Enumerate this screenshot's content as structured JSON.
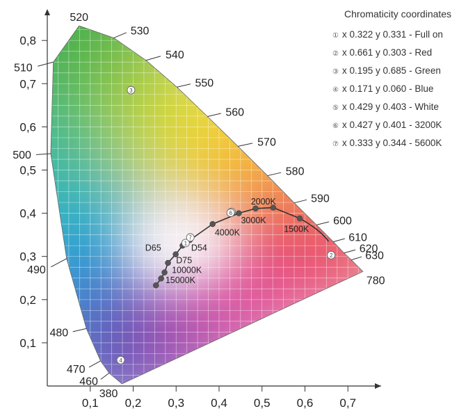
{
  "chart_data": {
    "type": "scatter",
    "title": "",
    "xlabel": "",
    "ylabel": "",
    "xlim": [
      0,
      0.77
    ],
    "ylim": [
      0,
      0.89
    ],
    "x_ticks": [
      {
        "value": 0.1,
        "label": "0,1"
      },
      {
        "value": 0.2,
        "label": "0,2"
      },
      {
        "value": 0.3,
        "label": "0,3"
      },
      {
        "value": 0.4,
        "label": "0,4"
      },
      {
        "value": 0.5,
        "label": "0,5"
      },
      {
        "value": 0.6,
        "label": "0,6"
      },
      {
        "value": 0.7,
        "label": "0,7"
      }
    ],
    "y_ticks": [
      {
        "value": 0.1,
        "label": "0,1"
      },
      {
        "value": 0.2,
        "label": "0,2"
      },
      {
        "value": 0.3,
        "label": "0,3"
      },
      {
        "value": 0.4,
        "label": "0,4"
      },
      {
        "value": 0.5,
        "label": "0,5"
      },
      {
        "value": 0.6,
        "label": "0,6"
      },
      {
        "value": 0.7,
        "label": "0,7"
      },
      {
        "value": 0.8,
        "label": "0,8"
      }
    ],
    "spectral_locus": [
      {
        "nm": "380",
        "x": 0.174,
        "y": 0.005
      },
      {
        "nm": "460",
        "x": 0.144,
        "y": 0.03
      },
      {
        "nm": "470",
        "x": 0.124,
        "y": 0.058
      },
      {
        "nm": "480",
        "x": 0.091,
        "y": 0.133
      },
      {
        "nm": "490",
        "x": 0.045,
        "y": 0.295
      },
      {
        "nm": "500",
        "x": 0.008,
        "y": 0.538
      },
      {
        "nm": "510",
        "x": 0.014,
        "y": 0.75
      },
      {
        "nm": "520",
        "x": 0.074,
        "y": 0.834
      },
      {
        "nm": "530",
        "x": 0.155,
        "y": 0.806
      },
      {
        "nm": "540",
        "x": 0.23,
        "y": 0.754
      },
      {
        "nm": "550",
        "x": 0.302,
        "y": 0.692
      },
      {
        "nm": "560",
        "x": 0.373,
        "y": 0.624
      },
      {
        "nm": "570",
        "x": 0.444,
        "y": 0.555
      },
      {
        "nm": "580",
        "x": 0.513,
        "y": 0.487
      },
      {
        "nm": "590",
        "x": 0.575,
        "y": 0.424
      },
      {
        "nm": "600",
        "x": 0.627,
        "y": 0.373
      },
      {
        "nm": "610",
        "x": 0.666,
        "y": 0.334
      },
      {
        "nm": "620",
        "x": 0.691,
        "y": 0.308
      },
      {
        "nm": "630",
        "x": 0.708,
        "y": 0.292
      },
      {
        "nm": "780",
        "x": 0.735,
        "y": 0.265
      }
    ],
    "planckian_locus": {
      "points": [
        {
          "x": 0.253,
          "y": 0.233
        },
        {
          "x": 0.265,
          "y": 0.249
        },
        {
          "x": 0.273,
          "y": 0.263
        },
        {
          "x": 0.281,
          "y": 0.285
        },
        {
          "x": 0.299,
          "y": 0.305
        },
        {
          "x": 0.315,
          "y": 0.325
        },
        {
          "x": 0.332,
          "y": 0.338
        },
        {
          "x": 0.385,
          "y": 0.375
        },
        {
          "x": 0.446,
          "y": 0.4
        },
        {
          "x": 0.485,
          "y": 0.411
        },
        {
          "x": 0.526,
          "y": 0.413
        },
        {
          "x": 0.588,
          "y": 0.388
        }
      ],
      "labels": [
        {
          "text": "15000K",
          "x": 0.275,
          "y": 0.238
        },
        {
          "text": "10000K",
          "x": 0.29,
          "y": 0.262
        },
        {
          "text": "D75",
          "x": 0.3,
          "y": 0.284
        },
        {
          "text": "D65",
          "x": 0.228,
          "y": 0.313
        },
        {
          "text": "D54",
          "x": 0.335,
          "y": 0.313
        },
        {
          "text": "4000K",
          "x": 0.39,
          "y": 0.349
        },
        {
          "text": "3000K",
          "x": 0.451,
          "y": 0.377
        },
        {
          "text": "2000K",
          "x": 0.474,
          "y": 0.42
        },
        {
          "text": "1500K",
          "x": 0.551,
          "y": 0.357
        }
      ]
    },
    "series": [
      {
        "name": "Full on",
        "id": "1",
        "x": 0.322,
        "y": 0.331
      },
      {
        "name": "Red",
        "id": "2",
        "x": 0.661,
        "y": 0.303
      },
      {
        "name": "Green",
        "id": "3",
        "x": 0.195,
        "y": 0.685
      },
      {
        "name": "Blue",
        "id": "4",
        "x": 0.171,
        "y": 0.06
      },
      {
        "name": "White",
        "id": "5",
        "x": 0.429,
        "y": 0.403
      },
      {
        "name": "3200K",
        "id": "6",
        "x": 0.427,
        "y": 0.401
      },
      {
        "name": "5600K",
        "id": "7",
        "x": 0.333,
        "y": 0.344
      }
    ],
    "grid": true
  },
  "legend": {
    "title": "Chromaticity coordinates",
    "items": [
      {
        "symbol": "①",
        "text": "x 0.322  y 0.331 - Full on"
      },
      {
        "symbol": "②",
        "text": "x 0.661  y 0.303 - Red"
      },
      {
        "symbol": "③",
        "text": "x 0.195  y 0.685 - Green"
      },
      {
        "symbol": "④",
        "text": "x 0.171  y 0.060 - Blue"
      },
      {
        "symbol": "⑤",
        "text": "x 0.429  y 0.403 - White"
      },
      {
        "symbol": "⑥",
        "text": "x 0.427  y 0.401 - 3200K"
      },
      {
        "symbol": "⑦",
        "text": "x 0.333  y 0.344 - 5600K"
      }
    ]
  },
  "colors": {
    "axis": "#333333",
    "locus_curve": "#333333",
    "marker_dot": "#555555",
    "point_fill": "#ffffff"
  }
}
